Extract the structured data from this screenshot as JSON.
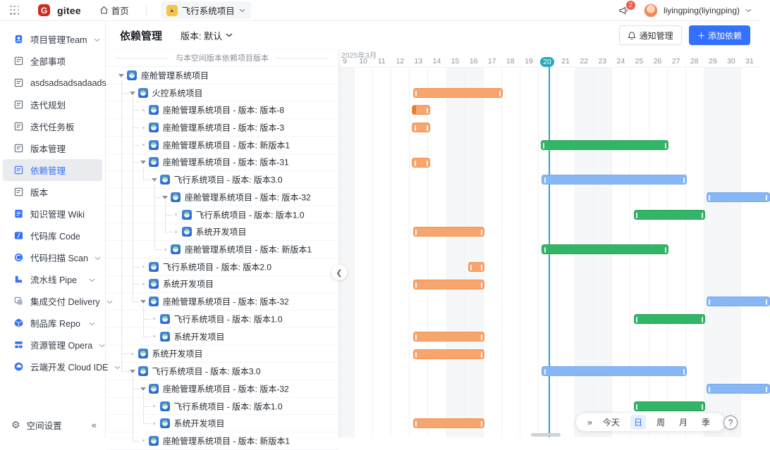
{
  "topbar": {
    "brand": "gitee",
    "home_label": "首页",
    "project_label": "飞行系统项目",
    "notification_count": "2",
    "user_label": "liyingping(liyingping)"
  },
  "sidebar": {
    "items": [
      {
        "label": "项目管理Team",
        "icon": "project-team",
        "chevron": true,
        "active": false
      },
      {
        "label": "全部事项",
        "icon": "doc",
        "chevron": false,
        "active": false
      },
      {
        "label": "asdsadsadsadaads",
        "icon": "doc",
        "chevron": false,
        "active": false
      },
      {
        "label": "迭代规划",
        "icon": "doc",
        "chevron": false,
        "active": false
      },
      {
        "label": "迭代任务板",
        "icon": "doc",
        "chevron": false,
        "active": false
      },
      {
        "label": "版本管理",
        "icon": "doc",
        "chevron": false,
        "active": false
      },
      {
        "label": "依赖管理",
        "icon": "doc",
        "chevron": false,
        "active": true
      },
      {
        "label": "版本",
        "icon": "doc",
        "chevron": false,
        "active": false
      },
      {
        "label": "知识管理 Wiki",
        "icon": "wiki",
        "chevron": false,
        "active": false
      },
      {
        "label": "代码库 Code",
        "icon": "code",
        "chevron": false,
        "active": false
      },
      {
        "label": "代码扫描 Scan",
        "icon": "scan",
        "chevron": true,
        "active": false
      },
      {
        "label": "流水线 Pipe",
        "icon": "pipe",
        "chevron": true,
        "active": false
      },
      {
        "label": "集成交付 Delivery",
        "icon": "delivery",
        "chevron": true,
        "active": false
      },
      {
        "label": "制品库 Repo",
        "icon": "repo",
        "chevron": true,
        "active": false
      },
      {
        "label": "资源管理 Opera",
        "icon": "opera",
        "chevron": true,
        "active": false
      },
      {
        "label": "云端开发 Cloud IDE",
        "icon": "cloud",
        "chevron": true,
        "active": false
      }
    ],
    "footer_label": "空间设置",
    "collapse_glyph": "«"
  },
  "header": {
    "title": "依赖管理",
    "version_label": "版本: 默认",
    "notify_button": "通知管理",
    "add_button": "＋ 添加依赖"
  },
  "tree": {
    "legend": "与本空间版本依赖项目版本",
    "rows": [
      {
        "label": "座舱管理系统项目",
        "level": 0,
        "expandable": true
      },
      {
        "label": "火控系统项目",
        "level": 1,
        "expandable": true
      },
      {
        "label": "座舱管理系统项目 - 版本: 版本-8",
        "level": 2,
        "expandable": false
      },
      {
        "label": "座舱管理系统项目 - 版本: 版本-3",
        "level": 2,
        "expandable": false
      },
      {
        "label": "座舱管理系统项目 - 版本: 新版本1",
        "level": 2,
        "expandable": false
      },
      {
        "label": "座舱管理系统项目 - 版本: 版本-31",
        "level": 2,
        "expandable": true
      },
      {
        "label": "飞行系统项目 - 版本: 版本3.0",
        "level": 3,
        "expandable": true
      },
      {
        "label": "座舱管理系统项目 - 版本: 版本-32",
        "level": 4,
        "expandable": true
      },
      {
        "label": "飞行系统项目 - 版本: 版本1.0",
        "level": 5,
        "expandable": false
      },
      {
        "label": "系统开发项目",
        "level": 5,
        "expandable": false
      },
      {
        "label": "座舱管理系统项目 - 版本: 新版本1",
        "level": 4,
        "expandable": false
      },
      {
        "label": "飞行系统项目 - 版本: 版本2.0",
        "level": 2,
        "expandable": false
      },
      {
        "label": "系统开发项目",
        "level": 2,
        "expandable": false
      },
      {
        "label": "座舱管理系统项目 - 版本: 版本-32",
        "level": 2,
        "expandable": true
      },
      {
        "label": "飞行系统项目 - 版本: 版本1.0",
        "level": 3,
        "expandable": false
      },
      {
        "label": "系统开发项目",
        "level": 3,
        "expandable": false
      },
      {
        "label": "系统开发项目",
        "level": 1,
        "expandable": false
      },
      {
        "label": "飞行系统项目 - 版本: 版本3.0",
        "level": 1,
        "expandable": true
      },
      {
        "label": "座舱管理系统项目 - 版本: 版本-32",
        "level": 2,
        "expandable": true
      },
      {
        "label": "飞行系统项目 - 版本: 版本1.0",
        "level": 3,
        "expandable": false
      },
      {
        "label": "系统开发项目",
        "level": 3,
        "expandable": false
      },
      {
        "label": "座舱管理系统项目 - 版本: 新版本1",
        "level": 2,
        "expandable": false
      }
    ]
  },
  "gantt": {
    "month_label": "2025年3月",
    "first_day": 9,
    "last_day": 31,
    "today": 20,
    "weekend_days": [
      9,
      15,
      16,
      22,
      23,
      29,
      30
    ],
    "bars": [
      {
        "row": 2,
        "start": 13.2,
        "end": 18.1,
        "color": "orange",
        "cap": false
      },
      {
        "row": 3,
        "start": 13.15,
        "end": 14.15,
        "color": "orange",
        "cap": true
      },
      {
        "row": 4,
        "start": 13.15,
        "end": 14.15,
        "color": "orange",
        "cap": false
      },
      {
        "row": 5,
        "start": 20.15,
        "end": 27.1,
        "color": "green",
        "cap": false
      },
      {
        "row": 6,
        "start": 13.15,
        "end": 14.15,
        "color": "orange",
        "cap": false
      },
      {
        "row": 7,
        "start": 20.2,
        "end": 28.1,
        "color": "blue",
        "cap": false
      },
      {
        "row": 8,
        "start": 29.15,
        "end": 32.6,
        "color": "blue",
        "cap": false
      },
      {
        "row": 9,
        "start": 25.2,
        "end": 29.1,
        "color": "green",
        "cap": false
      },
      {
        "row": 10,
        "start": 13.2,
        "end": 17.1,
        "color": "orange",
        "cap": false
      },
      {
        "row": 11,
        "start": 20.2,
        "end": 27.1,
        "color": "green",
        "cap": false
      },
      {
        "row": 12,
        "start": 16.2,
        "end": 17.1,
        "color": "orange",
        "cap": false
      },
      {
        "row": 13,
        "start": 13.2,
        "end": 17.1,
        "color": "orange",
        "cap": false
      },
      {
        "row": 14,
        "start": 29.15,
        "end": 32.6,
        "color": "blue",
        "cap": false
      },
      {
        "row": 15,
        "start": 25.2,
        "end": 29.1,
        "color": "green",
        "cap": false
      },
      {
        "row": 16,
        "start": 13.2,
        "end": 17.1,
        "color": "orange",
        "cap": false
      },
      {
        "row": 17,
        "start": 13.2,
        "end": 17.1,
        "color": "orange",
        "cap": false
      },
      {
        "row": 18,
        "start": 20.2,
        "end": 28.1,
        "color": "blue",
        "cap": false
      },
      {
        "row": 19,
        "start": 29.15,
        "end": 32.6,
        "color": "blue",
        "cap": false
      },
      {
        "row": 20,
        "start": 25.2,
        "end": 29.1,
        "color": "green",
        "cap": false
      },
      {
        "row": 21,
        "start": 13.2,
        "end": 17.1,
        "color": "orange",
        "cap": false
      }
    ]
  },
  "controls": {
    "expand_glyph": "»",
    "today_label": "今天",
    "views": [
      "日",
      "周",
      "月",
      "季"
    ],
    "active_view": "日",
    "help_glyph": "?"
  },
  "colors": {
    "accent": "#3370ff",
    "today_teal": "#29a9b9",
    "bar_orange": "#f7a56e",
    "bar_green": "#33b567",
    "bar_blue": "#86b7f4",
    "badge_red": "#f5594a",
    "gitee_red": "#cf2b20"
  }
}
